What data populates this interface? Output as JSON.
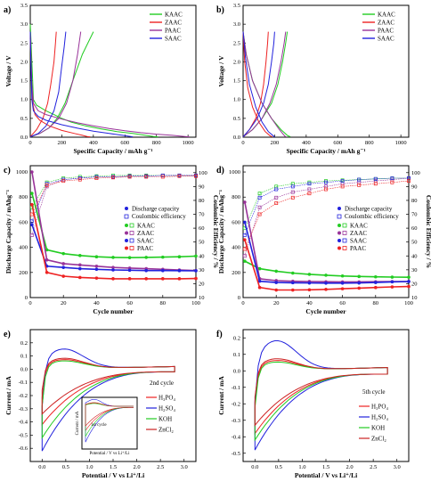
{
  "panels": [
    {
      "id": "a",
      "label": "a)",
      "type": "line",
      "xlabel": "Specific Capacity / mAh g⁻¹",
      "ylabel": "Voltage / V",
      "xlim": [
        0,
        1050
      ],
      "ylim": [
        0,
        3.5
      ],
      "xticks": [
        "0",
        "200",
        "400",
        "600",
        "800",
        "1000"
      ],
      "yticks": [
        "0.0",
        "0.5",
        "1.0",
        "1.5",
        "2.0",
        "2.5",
        "3.0",
        "3.5"
      ],
      "legend": "top-right",
      "series": [
        {
          "name": "KAAC",
          "color": "#22cc22",
          "x": [
            0,
            5,
            10,
            15,
            20,
            40,
            60,
            100,
            150,
            200,
            260,
            350,
            450,
            550,
            650,
            730,
            780,
            810
          ],
          "y": [
            3.0,
            2.5,
            2.0,
            1.5,
            1.0,
            0.85,
            0.8,
            0.7,
            0.6,
            0.5,
            0.4,
            0.3,
            0.22,
            0.15,
            0.1,
            0.05,
            0.02,
            0.01
          ],
          "x2": [
            0,
            60,
            120,
            170,
            220,
            270,
            330,
            400
          ],
          "y2": [
            0.01,
            0.1,
            0.25,
            0.5,
            0.9,
            1.5,
            2.2,
            2.8
          ]
        },
        {
          "name": "ZAAC",
          "color": "#ee2222",
          "x": [
            0,
            3,
            6,
            10,
            15,
            30,
            60,
            120,
            200,
            280,
            330,
            360,
            380
          ],
          "y": [
            2.8,
            2.4,
            1.8,
            1.3,
            0.9,
            0.6,
            0.45,
            0.3,
            0.18,
            0.1,
            0.05,
            0.02,
            0.01
          ],
          "x2": [
            0,
            40,
            80,
            110,
            130,
            150,
            160,
            165
          ],
          "y2": [
            0.01,
            0.2,
            0.5,
            0.9,
            1.4,
            2.0,
            2.5,
            2.8
          ]
        },
        {
          "name": "PAAC",
          "color": "#993399",
          "x": [
            0,
            5,
            10,
            20,
            50,
            100,
            200,
            300,
            400,
            500,
            600,
            700,
            800,
            900,
            980,
            1010
          ],
          "y": [
            2.6,
            2.0,
            1.4,
            0.9,
            0.7,
            0.6,
            0.48,
            0.38,
            0.3,
            0.23,
            0.17,
            0.12,
            0.08,
            0.05,
            0.02,
            0.01
          ],
          "x2": [
            0,
            60,
            120,
            180,
            230,
            270,
            300,
            320
          ],
          "y2": [
            0.01,
            0.1,
            0.25,
            0.5,
            0.9,
            1.5,
            2.2,
            2.8
          ]
        },
        {
          "name": "SAAC",
          "color": "#2222dd",
          "x": [
            0,
            3,
            6,
            10,
            20,
            50,
            100,
            200,
            300,
            400,
            500,
            600,
            650
          ],
          "y": [
            2.8,
            2.2,
            1.6,
            1.0,
            0.7,
            0.55,
            0.45,
            0.33,
            0.24,
            0.16,
            0.1,
            0.04,
            0.01
          ],
          "x2": [
            0,
            50,
            100,
            150,
            180,
            200,
            215,
            225
          ],
          "y2": [
            0.01,
            0.1,
            0.3,
            0.7,
            1.2,
            1.9,
            2.4,
            2.8
          ]
        }
      ]
    },
    {
      "id": "b",
      "label": "b)",
      "type": "line",
      "xlabel": "Specific Capacity / mAh g⁻¹",
      "ylabel": "Voltage / V",
      "xlim": [
        0,
        1050
      ],
      "ylim": [
        0,
        3.5
      ],
      "xticks": [
        "0",
        "200",
        "400",
        "600",
        "800",
        "1000"
      ],
      "yticks": [
        "0.0",
        "0.5",
        "1.0",
        "1.5",
        "2.0",
        "2.5",
        "3.0",
        "3.5"
      ],
      "legend": "top-right",
      "series": [
        {
          "name": "KAAC",
          "color": "#22cc22",
          "x": [
            0,
            20,
            60,
            120,
            180,
            240,
            280,
            300
          ],
          "y": [
            2.8,
            2.2,
            1.5,
            0.9,
            0.5,
            0.2,
            0.05,
            0.01
          ],
          "x2": [
            0,
            60,
            120,
            180,
            220,
            250,
            270,
            280
          ],
          "y2": [
            0.01,
            0.2,
            0.5,
            0.9,
            1.4,
            2.0,
            2.5,
            2.8
          ]
        },
        {
          "name": "ZAAC",
          "color": "#ee2222",
          "x": [
            0,
            10,
            30,
            60,
            100,
            140,
            170,
            185
          ],
          "y": [
            2.8,
            2.0,
            1.3,
            0.8,
            0.4,
            0.15,
            0.04,
            0.01
          ],
          "x2": [
            0,
            40,
            80,
            110,
            130,
            145,
            155,
            160
          ],
          "y2": [
            0.01,
            0.2,
            0.5,
            0.9,
            1.4,
            2.0,
            2.5,
            2.8
          ]
        },
        {
          "name": "PAAC",
          "color": "#993399",
          "x": [
            0,
            20,
            60,
            120,
            180,
            230,
            260,
            270
          ],
          "y": [
            2.8,
            2.2,
            1.5,
            0.9,
            0.5,
            0.2,
            0.05,
            0.01
          ],
          "x2": [
            0,
            60,
            120,
            170,
            210,
            240,
            260,
            270
          ],
          "y2": [
            0.01,
            0.2,
            0.5,
            0.9,
            1.4,
            2.0,
            2.5,
            2.8
          ]
        },
        {
          "name": "SAAC",
          "color": "#2222dd",
          "x": [
            0,
            15,
            40,
            80,
            120,
            160,
            190,
            200
          ],
          "y": [
            2.8,
            2.1,
            1.4,
            0.8,
            0.4,
            0.15,
            0.04,
            0.01
          ],
          "x2": [
            0,
            40,
            90,
            130,
            160,
            180,
            195,
            200
          ],
          "y2": [
            0.01,
            0.2,
            0.5,
            0.9,
            1.4,
            2.0,
            2.5,
            2.8
          ]
        }
      ]
    },
    {
      "id": "c",
      "label": "c)",
      "type": "scatter",
      "xlabel": "Cycle number",
      "ylabel": "Discharge Capacity / mAhg⁻¹",
      "ylabel2": "Coulombic Efficiency / %",
      "xlim": [
        0,
        100
      ],
      "ylim": [
        0,
        1050
      ],
      "ylim2": [
        10,
        105
      ],
      "xticks": [
        "0",
        "20",
        "40",
        "60",
        "80",
        "100"
      ],
      "yticks": [
        "0",
        "200",
        "400",
        "600",
        "800",
        "1000"
      ],
      "yticks2": [
        "10",
        "20",
        "30",
        "40",
        "50",
        "60",
        "70",
        "80",
        "90",
        "100"
      ],
      "legend_title1": "Discharge capacity",
      "legend_title2": "Coulombic efficiency",
      "legend": "middle-right",
      "series": [
        {
          "name": "KAAC",
          "color": "#22cc22",
          "cap": [
            830,
            380,
            350,
            335,
            325,
            320,
            318,
            320,
            322,
            325,
            330
          ],
          "ce": [
            75,
            93,
            96,
            97,
            97.5,
            98,
            98,
            98,
            98,
            98,
            98
          ]
        },
        {
          "name": "ZAAC",
          "color": "#993399",
          "cap": [
            1000,
            300,
            270,
            260,
            250,
            240,
            235,
            230,
            225,
            220,
            215
          ],
          "ce": [
            55,
            90,
            95,
            96,
            97,
            97,
            97.5,
            97.5,
            98,
            98,
            98
          ]
        },
        {
          "name": "SAAC",
          "color": "#2222dd",
          "cap": [
            580,
            250,
            240,
            230,
            225,
            220,
            218,
            215,
            215,
            214,
            213
          ],
          "ce": [
            65,
            92,
            95,
            96,
            97,
            97,
            97.5,
            97.5,
            98,
            98,
            98
          ]
        },
        {
          "name": "PAAC",
          "color": "#ee2222",
          "cap": [
            740,
            200,
            170,
            160,
            155,
            150,
            150,
            150,
            150,
            150,
            152
          ],
          "ce": [
            70,
            91,
            94,
            95,
            96,
            96.5,
            97,
            97,
            97,
            97.5,
            97.5
          ]
        }
      ],
      "x_samples": [
        1,
        10,
        20,
        30,
        40,
        50,
        60,
        70,
        80,
        90,
        100
      ]
    },
    {
      "id": "d",
      "label": "d)",
      "type": "scatter",
      "xlabel": "Cycle number",
      "ylabel": "Discharge Capacity / mAhg⁻¹",
      "ylabel2": "Coulombic Efficiency / %",
      "xlim": [
        0,
        100
      ],
      "ylim": [
        0,
        1050
      ],
      "ylim2": [
        10,
        105
      ],
      "xticks": [
        "0",
        "20",
        "40",
        "60",
        "80",
        "100"
      ],
      "yticks": [
        "0",
        "200",
        "400",
        "600",
        "800",
        "1000"
      ],
      "yticks2": [
        "10",
        "20",
        "30",
        "40",
        "50",
        "60",
        "70",
        "80",
        "90",
        "100"
      ],
      "legend_title1": "Discharge capacity",
      "legend_title2": "Coulombic efficiency",
      "legend": "middle-right",
      "series": [
        {
          "name": "KAAC",
          "color": "#22cc22",
          "cap": [
            290,
            230,
            210,
            195,
            185,
            178,
            172,
            168,
            165,
            163,
            162
          ],
          "ce": [
            60,
            85,
            90,
            92,
            93,
            94,
            94.5,
            95,
            95.5,
            96,
            96
          ]
        },
        {
          "name": "ZAAC",
          "color": "#993399",
          "cap": [
            760,
            150,
            135,
            130,
            128,
            126,
            125,
            125,
            126,
            127,
            128
          ],
          "ce": [
            40,
            75,
            82,
            86,
            88,
            90,
            92,
            93,
            94,
            95,
            96
          ]
        },
        {
          "name": "SAAC",
          "color": "#2222dd",
          "cap": [
            600,
            130,
            120,
            118,
            116,
            115,
            115,
            116,
            120,
            125,
            128
          ],
          "ce": [
            55,
            82,
            88,
            90,
            92,
            93,
            94,
            95,
            95.5,
            96,
            96
          ]
        },
        {
          "name": "PAAC",
          "color": "#ee2222",
          "cap": [
            460,
            80,
            60,
            60,
            62,
            65,
            70,
            75,
            80,
            85,
            88
          ],
          "ce": [
            45,
            70,
            78,
            82,
            85,
            88,
            90,
            91,
            92,
            93,
            94
          ]
        }
      ],
      "x_samples": [
        1,
        10,
        20,
        30,
        40,
        50,
        60,
        70,
        80,
        90,
        100
      ]
    },
    {
      "id": "e",
      "label": "e)",
      "type": "line",
      "xlabel": "Potential / V vs Li⁺/Li",
      "ylabel": "Current / mA",
      "xlim": [
        -0.25,
        3.25
      ],
      "ylim": [
        -0.7,
        0.3
      ],
      "xticks": [
        "0.0",
        "0.5",
        "1.0",
        "1.5",
        "2.0",
        "2.5",
        "3.0"
      ],
      "yticks": [
        "-0.6",
        "-0.5",
        "-0.4",
        "-0.3",
        "-0.2",
        "-0.1",
        "0.0",
        "0.1",
        "0.2"
      ],
      "legend_title": "2nd cycle",
      "legend": "middle-right",
      "series": [
        {
          "name": "H₃PO₄",
          "color": "#ee2222",
          "peak": -0.42,
          "top": 0.07
        },
        {
          "name": "H₂SO₄",
          "color": "#2222dd",
          "peak": -0.62,
          "top": 0.15
        },
        {
          "name": "KOH",
          "color": "#22cc22",
          "peak": -0.52,
          "top": 0.06
        },
        {
          "name": "ZnCl₂",
          "color": "#cc2222",
          "peak": -0.34,
          "top": 0.08
        }
      ],
      "inset": {
        "title": "1st cycle",
        "xlabel": "Potential / V vs Li⁺/Li",
        "ylabel": "Current / mA"
      }
    },
    {
      "id": "f",
      "label": "f)",
      "type": "line",
      "xlabel": "Potential / V vs Li⁺/Li",
      "ylabel": "Current / mA",
      "xlim": [
        -0.25,
        3.25
      ],
      "ylim": [
        -0.55,
        0.25
      ],
      "xticks": [
        "0.0",
        "0.5",
        "1.0",
        "1.5",
        "2.0",
        "2.5",
        "3.0"
      ],
      "yticks": [
        "-0.5",
        "-0.4",
        "-0.3",
        "-0.2",
        "-0.1",
        "0.0",
        "0.1",
        "0.2"
      ],
      "legend_title": "5th cycle",
      "legend": "bottom-right",
      "series": [
        {
          "name": "H₃PO₄",
          "color": "#ee2222",
          "peak": -0.38,
          "top": 0.06
        },
        {
          "name": "H₂SO₄",
          "color": "#2222dd",
          "peak": -0.48,
          "top": 0.18
        },
        {
          "name": "KOH",
          "color": "#22cc22",
          "peak": -0.42,
          "top": 0.05
        },
        {
          "name": "ZnCl₂",
          "color": "#cc2222",
          "peak": -0.33,
          "top": 0.07
        }
      ]
    }
  ]
}
